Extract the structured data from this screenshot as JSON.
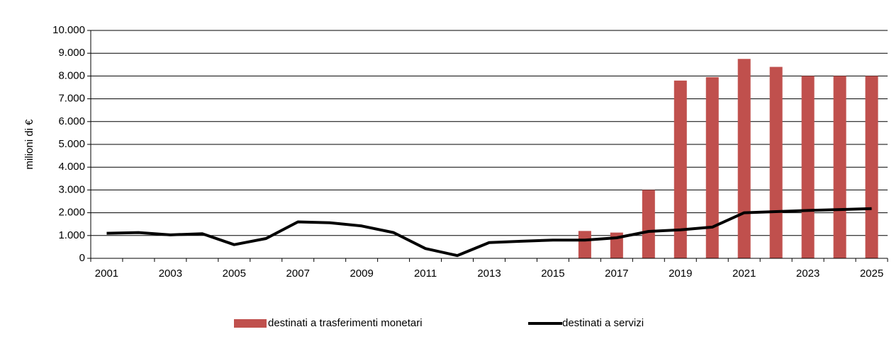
{
  "chart_data": {
    "type": "bar+line",
    "y_axis_label": "milioni di €",
    "categories": [
      "2001",
      null,
      "2003",
      null,
      "2005",
      null,
      "2007",
      null,
      "2009",
      null,
      "2011",
      null,
      "2013",
      null,
      "2015",
      null,
      "2017",
      null,
      "2019",
      null,
      "2021",
      null,
      "2023",
      null,
      "2025"
    ],
    "series": [
      {
        "name": "destinati a trasferimenti monetari",
        "type": "bar",
        "color": "#c0504d",
        "values": [
          null,
          null,
          null,
          null,
          null,
          null,
          null,
          null,
          null,
          null,
          null,
          null,
          null,
          null,
          null,
          1200,
          1130,
          3000,
          7800,
          7950,
          8750,
          8400,
          8000,
          8000,
          8000
        ]
      },
      {
        "name": "destinati a servizi",
        "type": "line",
        "color": "#000000",
        "values": [
          1100,
          1130,
          1030,
          1080,
          600,
          870,
          1600,
          1560,
          1420,
          1130,
          430,
          120,
          690,
          750,
          800,
          800,
          900,
          1180,
          1250,
          1370,
          2000,
          2050,
          2100,
          2140,
          2180
        ]
      }
    ],
    "ylim": [
      0,
      10000
    ],
    "yticks": [
      0,
      {
        "value": 1000,
        "label": "1.000"
      },
      {
        "value": 2000,
        "label": "2.000"
      },
      {
        "value": 3000,
        "label": "3.000"
      },
      {
        "value": 4000,
        "label": "4.000"
      },
      {
        "value": 5000,
        "label": "5.000"
      },
      {
        "value": 6000,
        "label": "6.000"
      },
      {
        "value": 7000,
        "label": "7.000"
      },
      {
        "value": 8000,
        "label": "8.000"
      },
      {
        "value": 9000,
        "label": "9.000"
      },
      {
        "value": 10000,
        "label": "10.000"
      }
    ],
    "grid": true,
    "legend": "bottom"
  }
}
